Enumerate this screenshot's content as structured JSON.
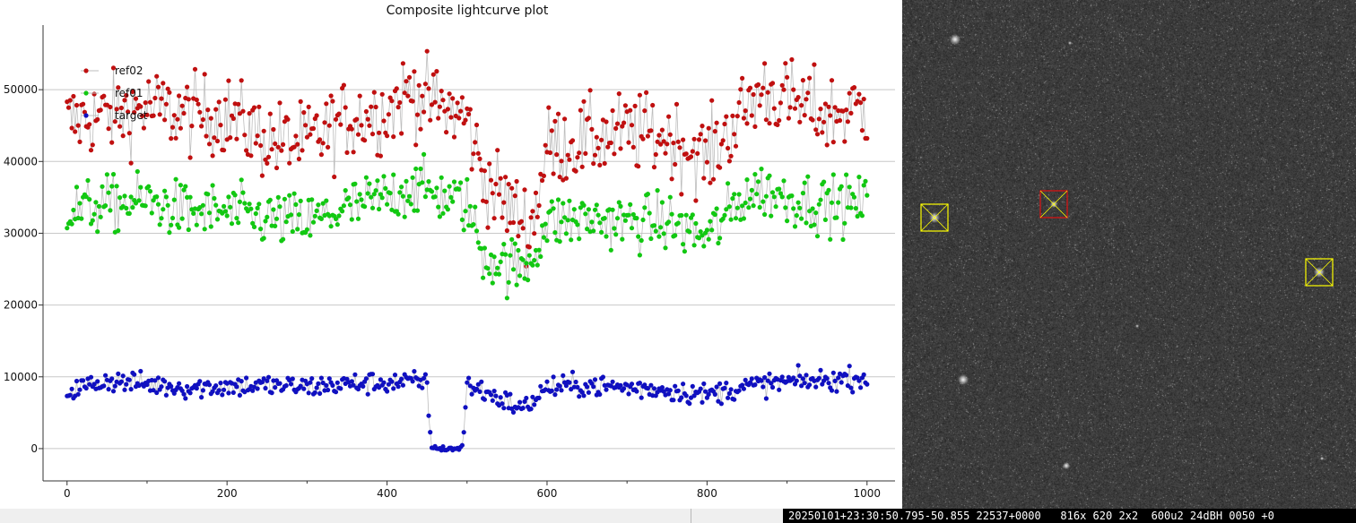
{
  "plot": {
    "title": "Composite lightcurve plot"
  },
  "colors": {
    "target": "#1010c0",
    "ref01": "#12c812",
    "ref02": "#c01010",
    "line": "#bdbdbd",
    "grid": "#c8c8c8",
    "marker_box": "#ffff00",
    "target_box": "#e01010"
  },
  "chart_data": {
    "type": "scatter",
    "title": "Composite lightcurve plot",
    "xlabel": "",
    "ylabel": "",
    "xlim": [
      -30,
      1035
    ],
    "ylim": [
      -4500,
      59000
    ],
    "x_ticks": [
      0,
      200,
      400,
      600,
      800,
      1000
    ],
    "y_ticks": [
      0,
      10000,
      20000,
      30000,
      40000,
      50000
    ],
    "grid": "horizontal",
    "legend_position": "top-left",
    "legend": [
      "ref02",
      "ref01",
      "target"
    ],
    "series": [
      {
        "name": "ref02",
        "x": [
          0,
          50,
          100,
          150,
          200,
          250,
          300,
          350,
          400,
          430,
          450,
          500,
          520,
          550,
          570,
          580,
          600,
          650,
          700,
          750,
          800,
          850,
          870,
          900,
          950,
          1000
        ],
        "y": [
          45500,
          46500,
          47500,
          46500,
          46500,
          43000,
          42500,
          46000,
          47000,
          50000,
          48500,
          46000,
          38000,
          34000,
          32000,
          30500,
          42000,
          43000,
          44000,
          43500,
          40500,
          47500,
          50000,
          48500,
          46500,
          47500
        ],
        "scatter": 4000
      },
      {
        "name": "ref01",
        "x": [
          0,
          50,
          100,
          150,
          200,
          250,
          300,
          350,
          400,
          430,
          450,
          500,
          520,
          550,
          570,
          580,
          600,
          650,
          700,
          750,
          800,
          850,
          870,
          900,
          950,
          1000
        ],
        "y": [
          33000,
          34000,
          34500,
          33000,
          33000,
          32000,
          31500,
          33500,
          35000,
          36500,
          36000,
          34000,
          27000,
          25500,
          25000,
          26500,
          31500,
          32000,
          31500,
          31500,
          29500,
          35500,
          36000,
          35000,
          34000,
          34000
        ],
        "scatter": 2800
      },
      {
        "name": "target",
        "x": [
          0,
          50,
          100,
          150,
          200,
          250,
          300,
          350,
          400,
          440,
          450,
          455,
          460,
          490,
          495,
          500,
          520,
          550,
          570,
          580,
          600,
          650,
          700,
          750,
          800,
          850,
          900,
          950,
          1000
        ],
        "y": [
          8000,
          9500,
          9000,
          8500,
          8700,
          8800,
          8600,
          9000,
          9200,
          9300,
          9000,
          500,
          0,
          0,
          500,
          9000,
          8000,
          6500,
          5500,
          6500,
          8500,
          8800,
          8500,
          8200,
          7500,
          8700,
          9300,
          9500,
          10000
        ],
        "scatter": 1100
      }
    ]
  },
  "image": {
    "status_text": "20250101+23:30:50.795-50.855 22537+0000   816x 620 2x2  600u2 24dBH 0050 +0"
  }
}
